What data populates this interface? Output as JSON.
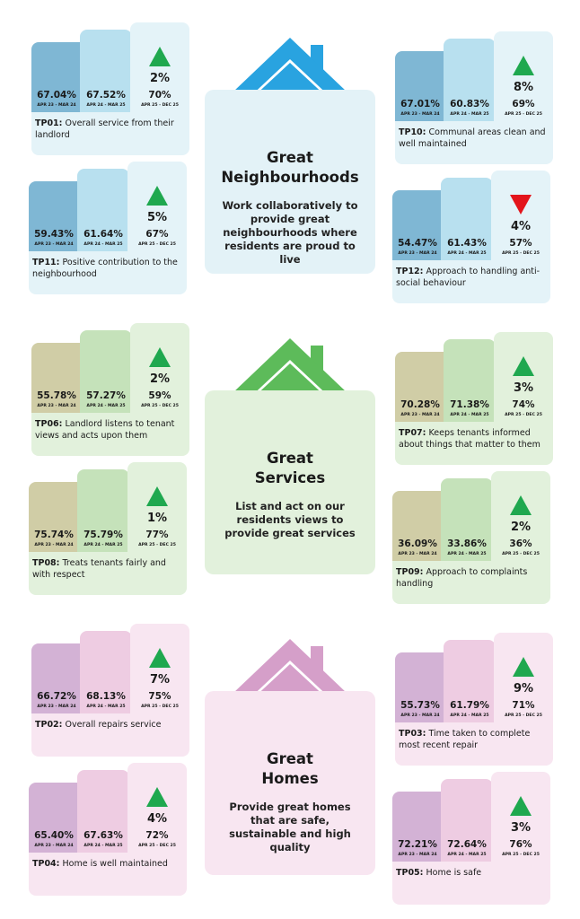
{
  "sections": [
    {
      "title": [
        "Great",
        "Neighbourhoods"
      ],
      "description": "Work collaboratively to provide great neighbourhoods where residents are proud to live",
      "cards": [
        {
          "code": "TP01:",
          "label": "Overall service from their landlord",
          "values": [
            {
              "value": "67.04%",
              "period": "APR 23 - MAR 24"
            },
            {
              "value": "67.52%",
              "period": "APR 24 - MAR 25"
            },
            {
              "value": "70%",
              "period": "APR 25 - DEC 25"
            }
          ],
          "change": "2%",
          "direction": "up"
        },
        {
          "code": "TP10:",
          "label": "Communal areas clean and well maintained",
          "values": [
            {
              "value": "67.01%",
              "period": "APR 23 - MAR 24"
            },
            {
              "value": "60.83%",
              "period": "APR 24 - MAR 25"
            },
            {
              "value": "69%",
              "period": "APR 25 - DEC 25"
            }
          ],
          "change": "8%",
          "direction": "up"
        },
        {
          "code": "TP11:",
          "label": "Positive contribution to the neighbourhood",
          "values": [
            {
              "value": "59.43%",
              "period": "APR 23 - MAR 24"
            },
            {
              "value": "61.64%",
              "period": "APR 24 - MAR 25"
            },
            {
              "value": "67%",
              "period": "APR 25 - DEC 25"
            }
          ],
          "change": "5%",
          "direction": "up"
        },
        {
          "code": "TP12:",
          "label": "Approach to handling anti-social behaviour",
          "values": [
            {
              "value": "54.47%",
              "period": "APR 23 - MAR 24"
            },
            {
              "value": "61.43%",
              "period": "APR 24 - MAR 25"
            },
            {
              "value": "57%",
              "period": "APR 25 - DEC 25"
            }
          ],
          "change": "4%",
          "direction": "down"
        }
      ]
    },
    {
      "title": [
        "Great",
        "Services"
      ],
      "description": "List and act on our residents views to provide great services",
      "cards": [
        {
          "code": "TP06:",
          "label": "Landlord listens to tenant views and acts upon them",
          "values": [
            {
              "value": "55.78%",
              "period": "APR 23 - MAR 24"
            },
            {
              "value": "57.27%",
              "period": "APR 24 - MAR 25"
            },
            {
              "value": "59%",
              "period": "APR 25 - DEC 25"
            }
          ],
          "change": "2%",
          "direction": "up"
        },
        {
          "code": "TP07:",
          "label": "Keeps tenants informed about things that matter to them",
          "values": [
            {
              "value": "70.28%",
              "period": "APR 23 - MAR 24"
            },
            {
              "value": "71.38%",
              "period": "APR 24 - MAR 25"
            },
            {
              "value": "74%",
              "period": "APR 25 - DEC 25"
            }
          ],
          "change": "3%",
          "direction": "up"
        },
        {
          "code": "TP08:",
          "label": "Treats tenants fairly and with respect",
          "values": [
            {
              "value": "75.74%",
              "period": "APR 23 - MAR 24"
            },
            {
              "value": "75.79%",
              "period": "APR 24 - MAR 25"
            },
            {
              "value": "77%",
              "period": "APR 25 - DEC 25"
            }
          ],
          "change": "1%",
          "direction": "up"
        },
        {
          "code": "TP09:",
          "label": "Approach to complaints handling",
          "values": [
            {
              "value": "36.09%",
              "period": "APR 23 - MAR 24"
            },
            {
              "value": "33.86%",
              "period": "APR 24 - MAR 25"
            },
            {
              "value": "36%",
              "period": "APR 25 - DEC 25"
            }
          ],
          "change": "2%",
          "direction": "up"
        }
      ]
    },
    {
      "title": [
        "Great",
        "Homes"
      ],
      "description": "Provide great homes that are safe, sustainable and high quality",
      "cards": [
        {
          "code": "TP02:",
          "label": "Overall repairs service",
          "values": [
            {
              "value": "66.72%",
              "period": "APR 23 - MAR 24"
            },
            {
              "value": "68.13%",
              "period": "APR 24 - MAR 25"
            },
            {
              "value": "75%",
              "period": "APR 25 - DEC 25"
            }
          ],
          "change": "7%",
          "direction": "up"
        },
        {
          "code": "TP03:",
          "label": "Time taken to complete most recent repair",
          "values": [
            {
              "value": "55.73%",
              "period": "APR 23 - MAR 24"
            },
            {
              "value": "61.79%",
              "period": "APR 24 - MAR 25"
            },
            {
              "value": "71%",
              "period": "APR 25 - DEC 25"
            }
          ],
          "change": "9%",
          "direction": "up"
        },
        {
          "code": "TP04:",
          "label": "Home is well maintained",
          "values": [
            {
              "value": "65.40%",
              "period": "APR 23 - MAR 24"
            },
            {
              "value": "67.63%",
              "period": "APR 24 - MAR 25"
            },
            {
              "value": "72%",
              "period": "APR 25 - DEC 25"
            }
          ],
          "change": "4%",
          "direction": "up"
        },
        {
          "code": "TP05:",
          "label": "Home is safe",
          "values": [
            {
              "value": "72.21%",
              "period": "APR 23 - MAR 24"
            },
            {
              "value": "72.64%",
              "period": "APR 24 - MAR 25"
            },
            {
              "value": "76%",
              "period": "APR 25 - DEC 25"
            }
          ],
          "change": "3%",
          "direction": "up"
        }
      ]
    }
  ]
}
